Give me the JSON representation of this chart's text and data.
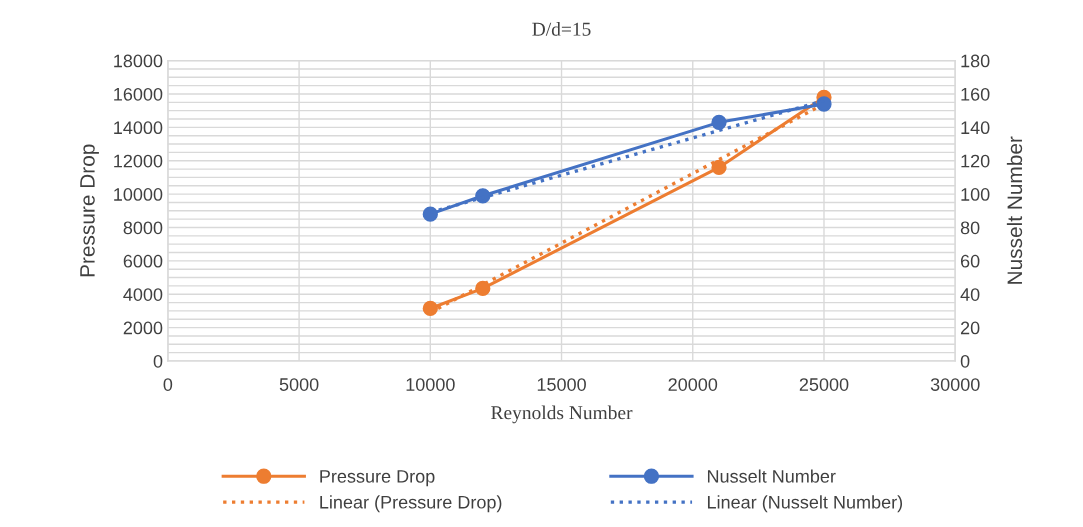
{
  "chart_data": {
    "type": "line",
    "title": "D/d=15",
    "xlabel": "Reynolds Number",
    "ylabel": "Pressure Drop",
    "y2label": "Nusselt Number",
    "xlim": [
      0,
      30000
    ],
    "xticks": [
      0,
      5000,
      10000,
      15000,
      20000,
      25000,
      30000
    ],
    "ylim": [
      0,
      18000
    ],
    "yticks": [
      0,
      2000,
      4000,
      6000,
      8000,
      10000,
      12000,
      14000,
      16000,
      18000
    ],
    "y2lim": [
      0,
      180
    ],
    "y2ticks": [
      0,
      20,
      40,
      60,
      80,
      100,
      120,
      140,
      160,
      180
    ],
    "grid": true,
    "legend": "bottom",
    "series": [
      {
        "name": "Pressure Drop",
        "color": "#ed7d31",
        "x": [
          10000,
          12000,
          21000,
          25000
        ],
        "values": [
          3150,
          4350,
          11600,
          15800
        ],
        "marker": "circle",
        "line_style": "solid"
      },
      {
        "name": "Nusselt Number",
        "color": "#4472c4",
        "axis": "y2",
        "x": [
          10000,
          12000,
          21000,
          25000
        ],
        "values": [
          88,
          99,
          143,
          154
        ],
        "marker": "circle",
        "line_style": "solid"
      },
      {
        "name": "Linear (Pressure Drop)",
        "color": "#ed7d31",
        "x": [
          10000,
          25000
        ],
        "values": [
          2900,
          15400
        ],
        "marker": "none",
        "line_style": "dotted"
      },
      {
        "name": "Linear (Nusselt Number)",
        "color": "#4472c4",
        "axis": "y2",
        "x": [
          10000,
          25000
        ],
        "values": [
          89,
          156
        ],
        "marker": "none",
        "line_style": "dotted"
      }
    ]
  }
}
